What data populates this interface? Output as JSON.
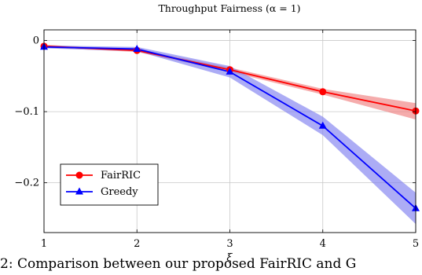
{
  "chart_data": {
    "type": "line",
    "title": "Throughput Fairness (α = 1)",
    "xlabel": "ξ",
    "ylabel": "",
    "x": [
      1,
      2,
      3,
      4,
      5
    ],
    "xlim": [
      1,
      5
    ],
    "ylim": [
      -0.27,
      0.015
    ],
    "xticks": [
      "1",
      "2",
      "3",
      "4",
      "5"
    ],
    "yticks": [
      {
        "value": 0,
        "label": "0"
      },
      {
        "value": -0.1,
        "label": "−0.1"
      },
      {
        "value": -0.2,
        "label": "−0.2"
      }
    ],
    "grid": true,
    "legend_position": "lower-left",
    "series": [
      {
        "name": "FairRIC",
        "color": "#ff0000",
        "band_color": "#f08080",
        "marker": "circle",
        "values": [
          -0.008,
          -0.014,
          -0.041,
          -0.072,
          -0.099
        ],
        "lower": [
          -0.01,
          -0.016,
          -0.044,
          -0.076,
          -0.111
        ],
        "upper": [
          -0.006,
          -0.012,
          -0.038,
          -0.068,
          -0.088
        ]
      },
      {
        "name": "Greedy",
        "color": "#0000ff",
        "band_color": "#8080f0",
        "marker": "triangle",
        "values": [
          -0.009,
          -0.012,
          -0.044,
          -0.12,
          -0.236
        ],
        "lower": [
          -0.011,
          -0.015,
          -0.052,
          -0.133,
          -0.258
        ],
        "upper": [
          -0.007,
          -0.009,
          -0.036,
          -0.107,
          -0.214
        ]
      }
    ]
  },
  "caption": "2: Comparison between our proposed FairRIC and G"
}
